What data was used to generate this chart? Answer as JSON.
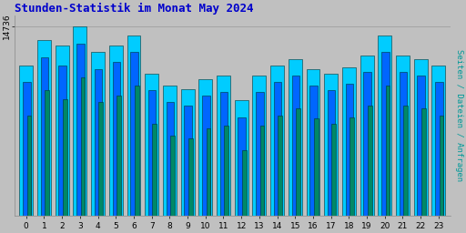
{
  "title": "Stunden-Statistik im Monat May 2024",
  "title_color": "#0000cc",
  "ylabel_right": "Seiten / Dateien / Anfragen",
  "ylabel_right_color": "#009999",
  "categories": [
    0,
    1,
    2,
    3,
    4,
    5,
    6,
    7,
    8,
    9,
    10,
    11,
    12,
    13,
    14,
    15,
    16,
    17,
    18,
    19,
    20,
    21,
    22,
    23
  ],
  "seiten": [
    14500,
    14650,
    14620,
    14736,
    14580,
    14620,
    14680,
    14450,
    14380,
    14360,
    14420,
    14440,
    14290,
    14440,
    14500,
    14540,
    14480,
    14450,
    14490,
    14560,
    14680,
    14560,
    14540,
    14500
  ],
  "dateien": [
    14400,
    14550,
    14500,
    14630,
    14480,
    14520,
    14580,
    14350,
    14280,
    14260,
    14320,
    14340,
    14190,
    14340,
    14400,
    14440,
    14380,
    14350,
    14390,
    14460,
    14580,
    14460,
    14440,
    14400
  ],
  "anfragen": [
    14200,
    14350,
    14300,
    14430,
    14280,
    14320,
    14380,
    14150,
    14080,
    14060,
    14120,
    14140,
    13990,
    14140,
    14200,
    14240,
    14180,
    14150,
    14190,
    14260,
    14380,
    14260,
    14240,
    14200
  ],
  "bar_color_seiten": "#00ccff",
  "bar_color_dateien": "#0066ff",
  "bar_color_anfragen": "#008866",
  "bar_edge_color": "#003333",
  "background_color": "#c0c0c0",
  "plot_bg_color": "#c0c0c0",
  "ylim_min": 13600,
  "ylim_max": 14800,
  "ytick_val": 14736,
  "ytick_label": "14736",
  "bar_width": 0.27,
  "figsize": [
    5.12,
    2.56
  ],
  "dpi": 100
}
